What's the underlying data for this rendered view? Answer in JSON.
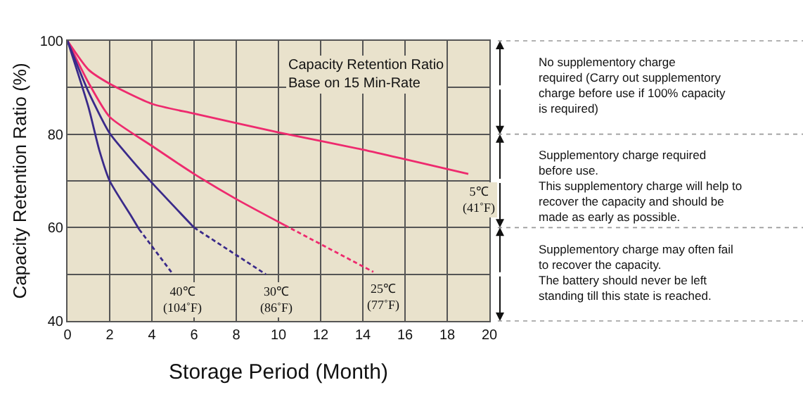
{
  "chart_data": {
    "type": "line",
    "xlabel": "Storage Period (Month)",
    "ylabel": "Capacity Retention Ratio (%)",
    "xlim": [
      0,
      20
    ],
    "xticks": [
      0,
      2,
      4,
      6,
      8,
      10,
      12,
      14,
      16,
      18,
      20
    ],
    "ylim": [
      40,
      100
    ],
    "yticks": [
      40,
      {
        "value": 50,
        "label": null
      },
      60,
      {
        "value": 70,
        "label": null
      },
      80,
      {
        "value": 90,
        "label": null
      },
      100
    ],
    "grid": true,
    "legend": false,
    "marker": "none",
    "series": [
      {
        "name": "5℃\n(41˚F)",
        "color": "#ee2a6e",
        "line_style": "solid",
        "x": [
          0,
          1,
          2,
          4,
          6,
          10,
          14,
          19
        ],
        "values": [
          100,
          93.8,
          90.8,
          86.5,
          84.4,
          80.4,
          76.7,
          71.5
        ]
      },
      {
        "color": "#ee2a6e",
        "line_style": "solid",
        "x": [
          0,
          1,
          2,
          4,
          6,
          8,
          10.3
        ],
        "values": [
          100,
          91,
          83.7,
          77.5,
          71.5,
          66.1,
          60.5
        ]
      },
      {
        "name": "25℃\n(77˚F)",
        "color": "#ee2a6e",
        "line_style": "dashed",
        "x": [
          10.3,
          14.5
        ],
        "values": [
          60.5,
          50.5
        ]
      },
      {
        "color": "#3a2a8a",
        "line_style": "solid",
        "x": [
          0,
          1,
          2,
          3,
          4,
          6
        ],
        "values": [
          100,
          89,
          80.2,
          74.7,
          69.6,
          60
        ]
      },
      {
        "name": "30℃\n(86˚F)",
        "color": "#3a2a8a",
        "line_style": "dashed",
        "x": [
          6,
          9.4
        ],
        "values": [
          60,
          50
        ]
      },
      {
        "color": "#3a2a8a",
        "line_style": "solid",
        "x": [
          0,
          1,
          1.5,
          2,
          3,
          3.4
        ],
        "values": [
          100,
          85.7,
          76.7,
          70,
          62.6,
          59.6
        ]
      },
      {
        "name": "40℃\n(104˚F)",
        "color": "#3a2a8a",
        "line_style": "dashed",
        "x": [
          3.4,
          5
        ],
        "values": [
          59.6,
          50
        ]
      }
    ],
    "annotations": [
      "Capacity Retention Ratio\nBase on 15 Min-Rate",
      "No supplementory charge\nrequired (Carry out supplementory\ncharge before use if 100% capacity\nis required)",
      "Supplementory charge required\nbefore use.\nThis supplementory charge will help to\nrecover the capacity and should be\nmade as early as possible.",
      "Supplementory charge may often fail\nto recover the capacity.\nThe battery should never be left\nstanding till this state is reached."
    ]
  }
}
